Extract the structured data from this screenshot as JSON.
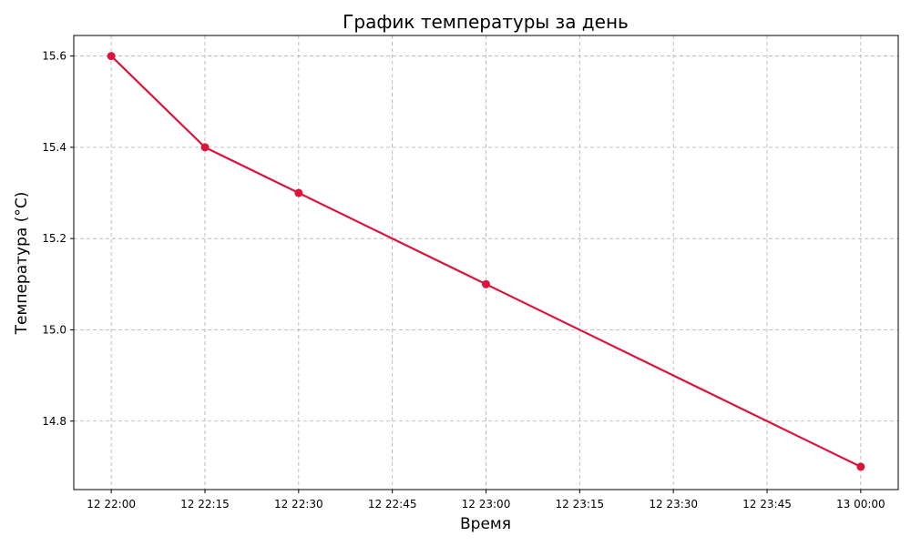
{
  "chart_data": {
    "type": "line",
    "title": "График температуры за день",
    "xlabel": "Время",
    "ylabel": "Температура (°C)",
    "x": [
      "12 22:00",
      "12 22:15",
      "12 22:30",
      "12 23:00",
      "13 00:00"
    ],
    "series": [
      {
        "values": [
          15.6,
          15.4,
          15.3,
          15.1,
          14.7
        ],
        "color": "#dc143c",
        "marker": "circle"
      }
    ],
    "x_ticks": [
      "12 22:00",
      "12 22:15",
      "12 22:30",
      "12 22:45",
      "12 23:00",
      "12 23:15",
      "12 23:30",
      "12 23:45",
      "13 00:00"
    ],
    "y_ticks": [
      "14.8",
      "15.0",
      "15.2",
      "15.4",
      "15.6"
    ],
    "ylim": [
      14.65,
      15.645
    ],
    "xlim": [
      "12 21:54",
      "13 00:06"
    ],
    "grid": true
  }
}
